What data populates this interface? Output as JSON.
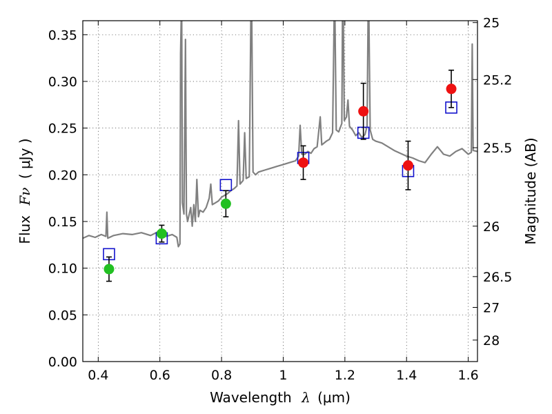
{
  "chart_data": {
    "type": "scatter",
    "title": "",
    "xlabel_main": "Wavelength",
    "xlabel_sym": "λ",
    "xlabel_unit": "(μm)",
    "ylabel_main": "Flux",
    "ylabel_sym": "Fν",
    "ylabel_unit": "( μJy )",
    "y2label": "Magnitude (AB)",
    "xlim": [
      0.35,
      1.63
    ],
    "ylim": [
      0.0,
      0.365
    ],
    "grid": true,
    "x_ticks": [
      0.4,
      0.6,
      0.8,
      1.0,
      1.2,
      1.4,
      1.6
    ],
    "x_tick_labels": [
      "0.4",
      "0.6",
      "0.8",
      "1",
      "1.2",
      "1.4",
      "1.6"
    ],
    "y_ticks": [
      0.0,
      0.05,
      0.1,
      0.15,
      0.2,
      0.25,
      0.3,
      0.35
    ],
    "y_tick_labels": [
      "0.00",
      "0.05",
      "0.10",
      "0.15",
      "0.20",
      "0.25",
      "0.30",
      "0.35"
    ],
    "y2_ticks": [
      {
        "label": "25",
        "flux": 0.363
      },
      {
        "label": "25.2",
        "flux": 0.302
      },
      {
        "label": "25.5",
        "flux": 0.229
      },
      {
        "label": "26",
        "flux": 0.145
      },
      {
        "label": "26.5",
        "flux": 0.091
      },
      {
        "label": "27",
        "flux": 0.058
      },
      {
        "label": "28",
        "flux": 0.023
      }
    ],
    "series": [
      {
        "marker": "circle",
        "color": "#22c022",
        "points": [
          {
            "x": 0.435,
            "y": 0.099,
            "err": 0.013
          },
          {
            "x": 0.606,
            "y": 0.137,
            "err": 0.009
          },
          {
            "x": 0.814,
            "y": 0.169,
            "err": 0.014
          }
        ]
      },
      {
        "marker": "circle",
        "color": "#ee1111",
        "points": [
          {
            "x": 1.065,
            "y": 0.213,
            "err": 0.018
          },
          {
            "x": 1.26,
            "y": 0.268,
            "err": 0.03
          },
          {
            "x": 1.405,
            "y": 0.21,
            "err": 0.026
          },
          {
            "x": 1.545,
            "y": 0.292,
            "err": 0.02
          }
        ]
      },
      {
        "marker": "open-square",
        "color": "#1111cc",
        "points": [
          {
            "x": 0.435,
            "y": 0.115
          },
          {
            "x": 0.606,
            "y": 0.132
          },
          {
            "x": 0.814,
            "y": 0.189
          },
          {
            "x": 1.065,
            "y": 0.218
          },
          {
            "x": 1.26,
            "y": 0.245
          },
          {
            "x": 1.405,
            "y": 0.204
          },
          {
            "x": 1.545,
            "y": 0.272
          }
        ]
      },
      {
        "marker": "line",
        "color": "#808080",
        "line": [
          [
            0.35,
            0.132
          ],
          [
            0.37,
            0.135
          ],
          [
            0.39,
            0.133
          ],
          [
            0.41,
            0.136
          ],
          [
            0.425,
            0.134
          ],
          [
            0.428,
            0.16
          ],
          [
            0.431,
            0.132
          ],
          [
            0.45,
            0.135
          ],
          [
            0.48,
            0.137
          ],
          [
            0.51,
            0.136
          ],
          [
            0.54,
            0.138
          ],
          [
            0.57,
            0.135
          ],
          [
            0.6,
            0.14
          ],
          [
            0.62,
            0.134
          ],
          [
            0.64,
            0.136
          ],
          [
            0.655,
            0.133
          ],
          [
            0.66,
            0.123
          ],
          [
            0.665,
            0.126
          ],
          [
            0.667,
            0.33
          ],
          [
            0.669,
            0.365
          ],
          [
            0.671,
            0.365
          ],
          [
            0.673,
            0.17
          ],
          [
            0.678,
            0.158
          ],
          [
            0.683,
            0.345
          ],
          [
            0.686,
            0.158
          ],
          [
            0.69,
            0.15
          ],
          [
            0.7,
            0.165
          ],
          [
            0.705,
            0.145
          ],
          [
            0.71,
            0.168
          ],
          [
            0.715,
            0.15
          ],
          [
            0.72,
            0.195
          ],
          [
            0.725,
            0.155
          ],
          [
            0.73,
            0.162
          ],
          [
            0.74,
            0.16
          ],
          [
            0.75,
            0.165
          ],
          [
            0.76,
            0.175
          ],
          [
            0.765,
            0.19
          ],
          [
            0.77,
            0.168
          ],
          [
            0.78,
            0.17
          ],
          [
            0.79,
            0.172
          ],
          [
            0.8,
            0.176
          ],
          [
            0.81,
            0.178
          ],
          [
            0.82,
            0.18
          ],
          [
            0.83,
            0.183
          ],
          [
            0.84,
            0.185
          ],
          [
            0.85,
            0.188
          ],
          [
            0.855,
            0.258
          ],
          [
            0.86,
            0.19
          ],
          [
            0.87,
            0.194
          ],
          [
            0.875,
            0.245
          ],
          [
            0.88,
            0.196
          ],
          [
            0.89,
            0.198
          ],
          [
            0.895,
            0.365
          ],
          [
            0.898,
            0.365
          ],
          [
            0.902,
            0.203
          ],
          [
            0.91,
            0.2
          ],
          [
            0.92,
            0.203
          ],
          [
            0.94,
            0.205
          ],
          [
            0.96,
            0.207
          ],
          [
            0.98,
            0.209
          ],
          [
            1.0,
            0.211
          ],
          [
            1.02,
            0.213
          ],
          [
            1.04,
            0.215
          ],
          [
            1.05,
            0.22
          ],
          [
            1.055,
            0.253
          ],
          [
            1.06,
            0.222
          ],
          [
            1.07,
            0.222
          ],
          [
            1.08,
            0.225
          ],
          [
            1.09,
            0.223
          ],
          [
            1.1,
            0.228
          ],
          [
            1.11,
            0.23
          ],
          [
            1.12,
            0.262
          ],
          [
            1.125,
            0.232
          ],
          [
            1.14,
            0.236
          ],
          [
            1.15,
            0.238
          ],
          [
            1.16,
            0.245
          ],
          [
            1.165,
            0.365
          ],
          [
            1.168,
            0.365
          ],
          [
            1.172,
            0.248
          ],
          [
            1.18,
            0.246
          ],
          [
            1.19,
            0.255
          ],
          [
            1.192,
            0.365
          ],
          [
            1.195,
            0.365
          ],
          [
            1.198,
            0.258
          ],
          [
            1.205,
            0.262
          ],
          [
            1.21,
            0.28
          ],
          [
            1.215,
            0.252
          ],
          [
            1.225,
            0.248
          ],
          [
            1.235,
            0.242
          ],
          [
            1.245,
            0.245
          ],
          [
            1.255,
            0.24
          ],
          [
            1.265,
            0.243
          ],
          [
            1.272,
            0.252
          ],
          [
            1.275,
            0.365
          ],
          [
            1.278,
            0.365
          ],
          [
            1.282,
            0.248
          ],
          [
            1.29,
            0.238
          ],
          [
            1.3,
            0.236
          ],
          [
            1.32,
            0.234
          ],
          [
            1.34,
            0.23
          ],
          [
            1.36,
            0.226
          ],
          [
            1.38,
            0.223
          ],
          [
            1.4,
            0.22
          ],
          [
            1.42,
            0.218
          ],
          [
            1.44,
            0.215
          ],
          [
            1.46,
            0.213
          ],
          [
            1.48,
            0.222
          ],
          [
            1.5,
            0.23
          ],
          [
            1.51,
            0.226
          ],
          [
            1.52,
            0.222
          ],
          [
            1.54,
            0.22
          ],
          [
            1.56,
            0.225
          ],
          [
            1.58,
            0.228
          ],
          [
            1.6,
            0.222
          ],
          [
            1.61,
            0.224
          ],
          [
            1.613,
            0.34
          ],
          [
            1.616,
            0.226
          ],
          [
            1.63,
            0.225
          ]
        ]
      }
    ]
  }
}
